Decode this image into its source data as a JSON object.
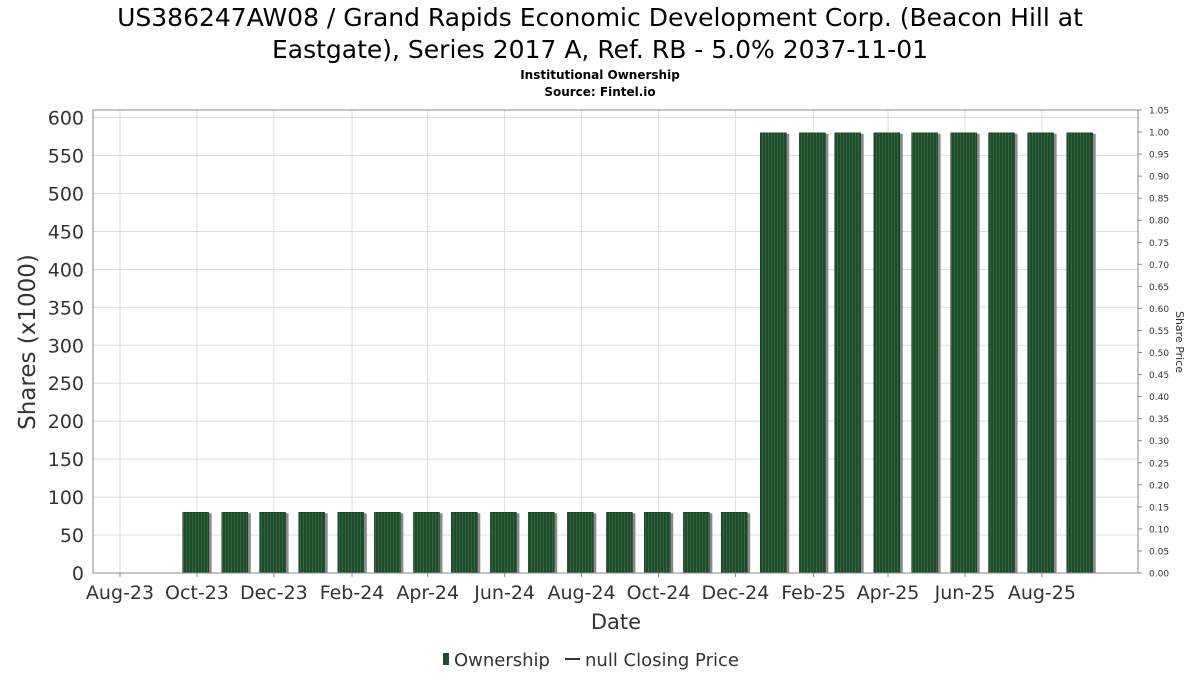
{
  "chart_data": {
    "type": "bar",
    "title_line1": "US386247AW08 / Grand Rapids Economic Development Corp. (Beacon Hill at",
    "title_line2": "Eastgate), Series 2017 A, Ref. RB - 5.0% 2037-11-01",
    "subtitle1": "Institutional Ownership",
    "subtitle2": "Source: Fintel.io",
    "xlabel": "Date",
    "ylabel": "Shares (x1000)",
    "y2label": "Share Price",
    "ylim": [
      0,
      610
    ],
    "y2lim": [
      0,
      1.05
    ],
    "yticks": [
      "0",
      "50",
      "100",
      "150",
      "200",
      "250",
      "300",
      "350",
      "400",
      "450",
      "500",
      "550",
      "600"
    ],
    "y2ticks": [
      "0.00",
      "0.05",
      "0.10",
      "0.15",
      "0.20",
      "0.25",
      "0.30",
      "0.35",
      "0.40",
      "0.45",
      "0.50",
      "0.55",
      "0.60",
      "0.65",
      "0.70",
      "0.75",
      "0.80",
      "0.85",
      "0.90",
      "0.95",
      "1.00",
      "1.05"
    ],
    "xtick_labels": [
      "Aug-23",
      "Oct-23",
      "Dec-23",
      "Feb-24",
      "Apr-24",
      "Jun-24",
      "Aug-24",
      "Oct-24",
      "Dec-24",
      "Feb-25",
      "Apr-25",
      "Jun-25",
      "Aug-25"
    ],
    "dates": [
      "2023-09-30",
      "2023-10-31",
      "2023-11-30",
      "2023-12-31",
      "2024-01-31",
      "2024-02-29",
      "2024-03-31",
      "2024-04-30",
      "2024-05-31",
      "2024-06-30",
      "2024-07-31",
      "2024-08-31",
      "2024-09-30",
      "2024-10-31",
      "2024-11-30",
      "2024-12-31",
      "2025-01-31",
      "2025-02-28",
      "2025-03-31",
      "2025-04-30",
      "2025-05-31",
      "2025-06-30",
      "2025-07-31",
      "2025-08-31"
    ],
    "series": [
      {
        "name": "Ownership",
        "values": [
          80,
          80,
          80,
          80,
          80,
          80,
          80,
          80,
          80,
          80,
          80,
          80,
          80,
          80,
          80,
          580,
          580,
          580,
          580,
          580,
          580,
          580,
          580,
          580
        ]
      }
    ],
    "legend": {
      "position": "bottom-center",
      "items": [
        "Ownership",
        "null Closing Price"
      ]
    },
    "grid": true,
    "colors": {
      "bar": "#1f4a2c",
      "bar_stripe": "#2f6a3c",
      "bar_shadow": "#8a8a8a",
      "grid": "#dddddd",
      "axis": "#888888"
    }
  }
}
